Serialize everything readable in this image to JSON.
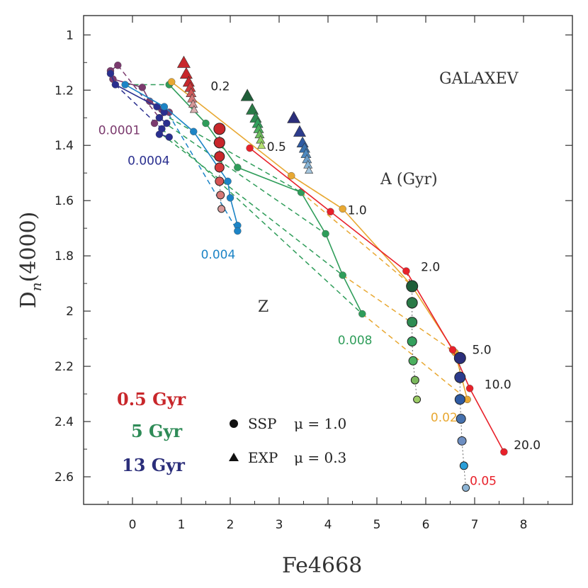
{
  "chart_data": {
    "type": "scatter",
    "title": "GALAXEV",
    "xlabel": "Fe4668",
    "ylabel_main": "D",
    "ylabel_sub": "n",
    "ylabel_rest": "(4000)",
    "xlim": [
      -1,
      9
    ],
    "ylim": [
      2.7,
      0.93
    ],
    "y_inverted": true,
    "grid": false,
    "xticks": [
      0,
      1,
      2,
      3,
      4,
      5,
      6,
      7,
      8
    ],
    "yticks": [
      1,
      1.2,
      1.4,
      1.6,
      1.8,
      2,
      2.2,
      2.4,
      2.6
    ],
    "xtick_labels": [
      "0",
      "1",
      "2",
      "3",
      "4",
      "5",
      "6",
      "7",
      "8"
    ],
    "ytick_labels": [
      "1",
      "1.2",
      "1.4",
      "1.6",
      "1.8",
      "2",
      "2.2",
      "2.4",
      "2.6"
    ],
    "annotations": {
      "age_axis": "A (Gyr)",
      "metal_axis": "Z",
      "ages": [
        {
          "text": "0.2",
          "x": 1.6,
          "y": 1.2
        },
        {
          "text": "0.5",
          "x": 2.75,
          "y": 1.42
        },
        {
          "text": "1.0",
          "x": 4.4,
          "y": 1.65
        },
        {
          "text": "2.0",
          "x": 5.9,
          "y": 1.855
        },
        {
          "text": "5.0",
          "x": 6.95,
          "y": 2.155
        },
        {
          "text": "10.0",
          "x": 7.2,
          "y": 2.28
        },
        {
          "text": "20.0",
          "x": 7.8,
          "y": 2.5
        }
      ],
      "metallicities": [
        {
          "text": "0.0001",
          "x": -0.7,
          "y": 1.36,
          "color": "#7b3a6e"
        },
        {
          "text": "0.0004",
          "x": -0.1,
          "y": 1.47,
          "color": "#2a2f8f"
        },
        {
          "text": "0.004",
          "x": 1.4,
          "y": 1.81,
          "color": "#1c84c6"
        },
        {
          "text": "0.008",
          "x": 4.2,
          "y": 2.12,
          "color": "#2f9d5a"
        },
        {
          "text": "0.02",
          "x": 6.1,
          "y": 2.4,
          "color": "#e8a832"
        },
        {
          "text": "0.05",
          "x": 6.9,
          "y": 2.63,
          "color": "#e8212a"
        }
      ]
    },
    "legend": {
      "ages": [
        {
          "label": "0.5 Gyr",
          "color": "#c8272b"
        },
        {
          "label": "5 Gyr",
          "color": "#2e8b57"
        },
        {
          "label": "13 Gyr",
          "color": "#2b2e7a"
        }
      ],
      "symbols": [
        {
          "symbol": "circle",
          "label": "SSP",
          "mu_label": "μ = 1.0"
        },
        {
          "symbol": "triangle",
          "label": "EXP",
          "mu_label": "μ = 0.3"
        }
      ]
    },
    "series": [
      {
        "name": "0.0001",
        "color": "#7b3a6e",
        "x": [
          -0.3,
          -0.45,
          -0.4,
          0.2,
          0.35,
          0.6,
          0.75,
          0.55,
          0.45
        ],
        "y": [
          1.11,
          1.13,
          1.16,
          1.19,
          1.24,
          1.27,
          1.28,
          1.3,
          1.32
        ]
      },
      {
        "name": "0.0004",
        "color": "#2a2f8f",
        "x": [
          -0.45,
          -0.35,
          0.5,
          0.65,
          0.55,
          0.7,
          0.6,
          0.55,
          0.75
        ],
        "y": [
          1.14,
          1.18,
          1.26,
          1.28,
          1.3,
          1.32,
          1.34,
          1.36,
          1.37
        ]
      },
      {
        "name": "0.004",
        "color": "#1c84c6",
        "x": [
          -0.15,
          0.65,
          1.25,
          1.95,
          2.0,
          2.15,
          2.15
        ],
        "y": [
          1.18,
          1.26,
          1.35,
          1.53,
          1.59,
          1.69,
          1.71
        ]
      },
      {
        "name": "0.008",
        "color": "#2f9d5a",
        "x": [
          0.75,
          1.5,
          2.15,
          3.45,
          3.95,
          4.3,
          4.7
        ],
        "y": [
          1.18,
          1.32,
          1.48,
          1.57,
          1.72,
          1.87,
          2.01
        ]
      },
      {
        "name": "0.02",
        "color": "#e8a832",
        "x": [
          0.8,
          3.25,
          4.3,
          5.7,
          6.6,
          6.85
        ],
        "y": [
          1.17,
          1.51,
          1.63,
          1.905,
          2.15,
          2.32
        ]
      },
      {
        "name": "0.05",
        "color": "#e8212a",
        "x": [
          2.4,
          4.05,
          5.6,
          6.55,
          6.9,
          7.6
        ],
        "y": [
          1.41,
          1.64,
          1.855,
          2.14,
          2.28,
          2.51
        ]
      }
    ],
    "age_columns": [
      {
        "age": "0.5 Gyr",
        "x": [
          1.78,
          1.78,
          1.78,
          1.78,
          1.78,
          1.8,
          1.82
        ],
        "y": [
          1.34,
          1.39,
          1.44,
          1.48,
          1.53,
          1.58,
          1.63
        ],
        "colors": [
          "#c8272b",
          "#c8272b",
          "#c8272b",
          "#d63a3c",
          "#d65454",
          "#d67878",
          "#d99a9a"
        ]
      },
      {
        "age": "5 Gyr",
        "x": [
          5.72,
          5.72,
          5.72,
          5.72,
          5.74,
          5.78,
          5.82
        ],
        "y": [
          1.91,
          1.97,
          2.04,
          2.11,
          2.18,
          2.25,
          2.32
        ],
        "colors": [
          "#1f5e39",
          "#2a7a47",
          "#2f8c52",
          "#34a05d",
          "#4cb05f",
          "#7ab85c",
          "#9ccc66"
        ]
      },
      {
        "age": "13 Gyr",
        "x": [
          6.7,
          6.7,
          6.7,
          6.72,
          6.74,
          6.78,
          6.82
        ],
        "y": [
          2.17,
          2.24,
          2.32,
          2.39,
          2.47,
          2.56,
          2.64
        ],
        "colors": [
          "#2b2e7a",
          "#2c3b8c",
          "#2f5ba3",
          "#4671ae",
          "#6e8fc2",
          "#2a9ed8",
          "#8db5d6"
        ]
      }
    ],
    "triangles": [
      {
        "age": "0.5 Gyr",
        "x": [
          1.05,
          1.1,
          1.15,
          1.18,
          1.2,
          1.22,
          1.24,
          1.26
        ],
        "y": [
          1.1,
          1.14,
          1.17,
          1.19,
          1.21,
          1.23,
          1.25,
          1.27
        ],
        "colors": [
          "#c8272b",
          "#c8272b",
          "#c8272b",
          "#cc3a3c",
          "#d05a5a",
          "#d47a7a",
          "#d69898",
          "#d8b0b0"
        ]
      },
      {
        "age": "5 Gyr",
        "x": [
          2.35,
          2.45,
          2.52,
          2.56,
          2.58,
          2.6,
          2.62,
          2.64
        ],
        "y": [
          1.22,
          1.27,
          1.3,
          1.32,
          1.34,
          1.36,
          1.38,
          1.4
        ],
        "colors": [
          "#1f5e39",
          "#2a7a47",
          "#2f8c52",
          "#34a05d",
          "#4cb05f",
          "#6fbf5f",
          "#8ed064",
          "#b4df70"
        ]
      },
      {
        "age": "13 Gyr",
        "x": [
          3.3,
          3.42,
          3.48,
          3.52,
          3.55,
          3.57,
          3.59,
          3.61
        ],
        "y": [
          1.3,
          1.35,
          1.39,
          1.41,
          1.43,
          1.45,
          1.47,
          1.49
        ],
        "colors": [
          "#2b2e7a",
          "#2c3b8c",
          "#2f5ba3",
          "#3a72ae",
          "#4f89bf",
          "#6d9fcb",
          "#89b5d6",
          "#a5c6de"
        ]
      }
    ],
    "dashed_links": [
      {
        "color": "#7b3a6e",
        "from": [
          -0.3,
          1.11
        ],
        "to": [
          0.55,
          1.3
        ]
      },
      {
        "color": "#2a2f8f",
        "from": [
          -0.35,
          1.18
        ],
        "to": [
          0.6,
          1.34
        ]
      },
      {
        "color": "#1c84c6",
        "from": [
          0.65,
          1.26
        ],
        "to": [
          2.15,
          1.71
        ]
      },
      {
        "color": "#2f9d5a",
        "from": [
          -0.15,
          1.18
        ],
        "to": [
          0.75,
          1.18
        ]
      },
      {
        "color": "#2f9d5a",
        "from": [
          0.75,
          1.3
        ],
        "to": [
          3.45,
          1.57
        ]
      },
      {
        "color": "#2f9d5a",
        "from": [
          0.75,
          1.33
        ],
        "to": [
          3.95,
          1.72
        ]
      },
      {
        "color": "#2f9d5a",
        "from": [
          0.6,
          1.34
        ],
        "to": [
          4.7,
          2.01
        ]
      },
      {
        "color": "#2f9d5a",
        "from": [
          0.6,
          1.36
        ],
        "to": [
          4.3,
          1.87
        ]
      },
      {
        "color": "#e8a832",
        "from": [
          3.25,
          1.51
        ],
        "to": [
          4.3,
          1.63
        ]
      },
      {
        "color": "#e8a832",
        "from": [
          3.45,
          1.57
        ],
        "to": [
          5.7,
          1.905
        ]
      },
      {
        "color": "#e8a832",
        "from": [
          4.3,
          1.87
        ],
        "to": [
          6.6,
          2.15
        ]
      },
      {
        "color": "#e8a832",
        "from": [
          4.7,
          2.01
        ],
        "to": [
          6.85,
          2.32
        ]
      },
      {
        "color": "#e8212a",
        "from": [
          5.6,
          1.855
        ],
        "to": [
          5.7,
          1.905
        ]
      },
      {
        "color": "#e8212a",
        "from": [
          6.55,
          2.14
        ],
        "to": [
          6.7,
          2.17
        ]
      }
    ]
  }
}
